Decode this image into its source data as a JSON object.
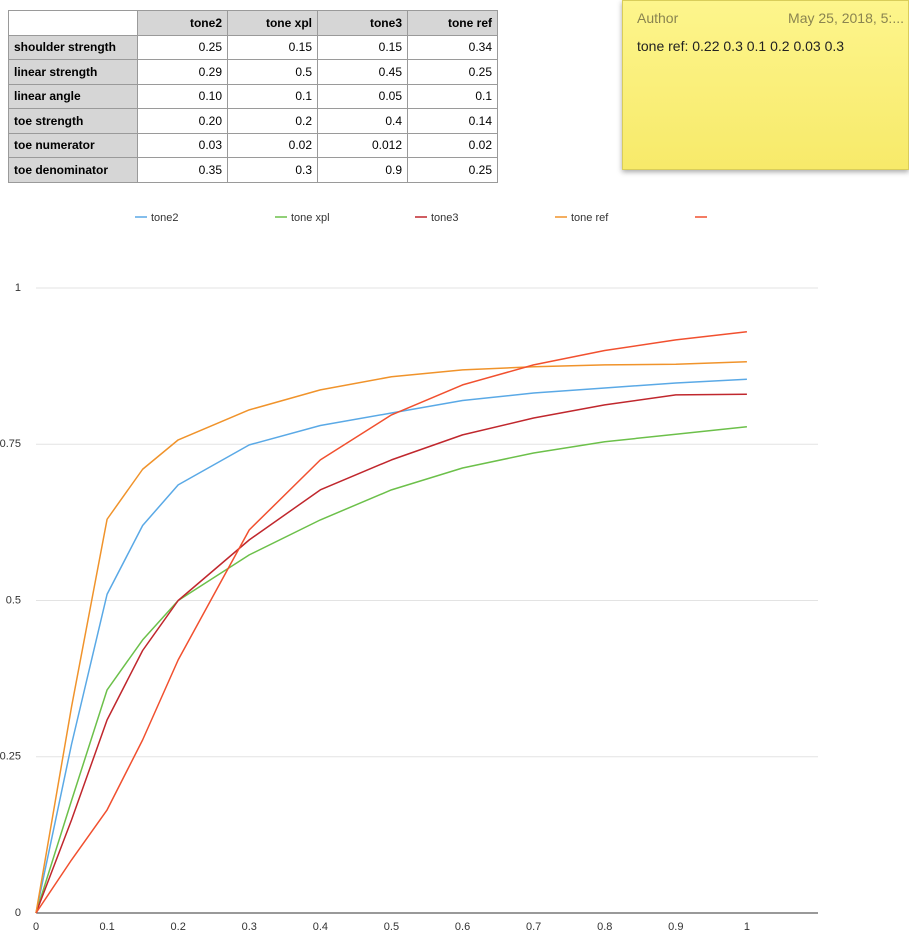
{
  "table": {
    "header": [
      null,
      "tone2",
      "tone xpl",
      "tone3",
      "tone ref"
    ],
    "rows": [
      [
        "shoulder strength",
        "0.25",
        "0.15",
        "0.15",
        "0.34"
      ],
      [
        "linear strength",
        "0.29",
        "0.5",
        "0.45",
        "0.25"
      ],
      [
        "linear angle",
        "0.10",
        "0.1",
        "0.05",
        "0.1"
      ],
      [
        "toe strength",
        "0.20",
        "0.2",
        "0.4",
        "0.14"
      ],
      [
        "toe numerator",
        "0.03",
        "0.02",
        "0.012",
        "0.02"
      ],
      [
        "toe denominator",
        "0.35",
        "0.3",
        "0.9",
        "0.25"
      ]
    ]
  },
  "note": {
    "author": "Author",
    "date": "May 25, 2018, 5:...",
    "text": "tone ref: 0.22 0.3 0.1 0.2 0.03 0.3"
  },
  "chart_data": {
    "type": "line",
    "x": [
      0,
      0.05,
      0.1,
      0.15,
      0.2,
      0.3,
      0.4,
      0.5,
      0.6,
      0.7,
      0.8,
      0.9,
      1
    ],
    "series": [
      {
        "name": "tone2",
        "color": "#5aa9e6",
        "values": [
          0,
          0.27,
          0.51,
          0.62,
          0.685,
          0.749,
          0.78,
          0.8,
          0.82,
          0.832,
          0.84,
          0.848,
          0.854
        ]
      },
      {
        "name": "tone xpl",
        "color": "#6cc04a",
        "values": [
          0,
          0.18,
          0.357,
          0.437,
          0.5,
          0.573,
          0.629,
          0.677,
          0.712,
          0.736,
          0.754,
          0.766,
          0.778
        ]
      },
      {
        "name": "tone3",
        "color": "#c0272d",
        "values": [
          0,
          0.149,
          0.309,
          0.42,
          0.5,
          0.597,
          0.677,
          0.725,
          0.765,
          0.792,
          0.813,
          0.829,
          0.83
        ]
      },
      {
        "name": "tone ref",
        "color": "#f0932b",
        "values": [
          0,
          0.33,
          0.63,
          0.71,
          0.757,
          0.805,
          0.837,
          0.858,
          0.869,
          0.874,
          0.877,
          0.878,
          0.882
        ]
      },
      {
        "name": null,
        "color": "#f1502f",
        "values": [
          0,
          0.085,
          0.165,
          0.277,
          0.405,
          0.613,
          0.725,
          0.797,
          0.845,
          0.877,
          0.9,
          0.917,
          0.93
        ]
      }
    ],
    "xlim": [
      0,
      1.1
    ],
    "xticks": [
      0,
      0.1,
      0.2,
      0.3,
      0.4,
      0.5,
      0.6,
      0.7,
      0.8,
      0.9,
      1
    ],
    "ylim": [
      0,
      1
    ],
    "yticks": [
      0,
      0.25,
      0.5,
      0.75,
      1
    ],
    "grid": true
  }
}
